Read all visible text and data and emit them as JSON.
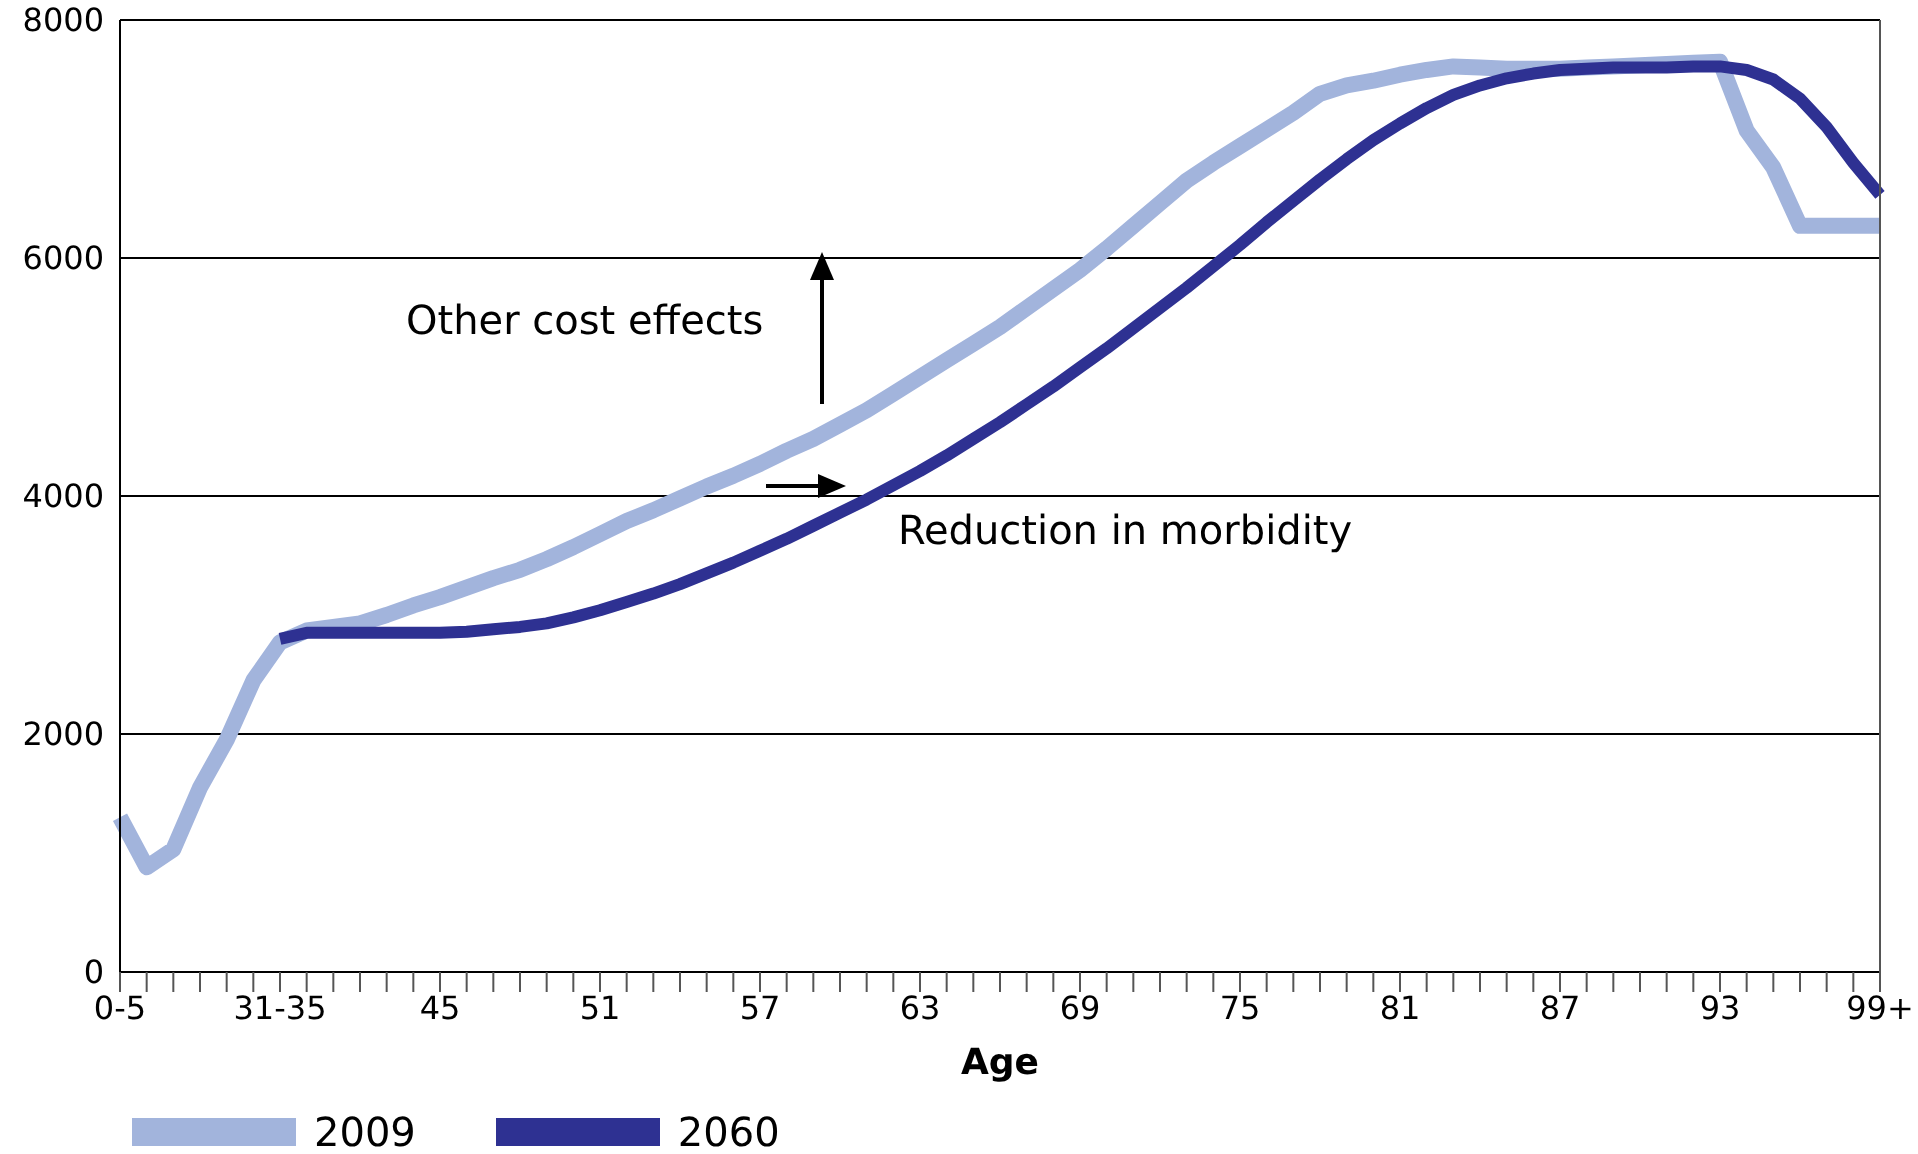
{
  "chart_data": {
    "type": "line",
    "xlabel": "Age",
    "categories": [
      "0-5",
      null,
      null,
      null,
      null,
      null,
      "31-35",
      null,
      null,
      null,
      null,
      null,
      "45",
      null,
      null,
      null,
      null,
      null,
      "51",
      null,
      null,
      null,
      null,
      null,
      "57",
      null,
      null,
      null,
      null,
      null,
      "63",
      null,
      null,
      null,
      null,
      null,
      "69",
      null,
      null,
      null,
      null,
      null,
      "75",
      null,
      null,
      null,
      null,
      null,
      "81",
      null,
      null,
      null,
      null,
      null,
      "87",
      null,
      null,
      null,
      null,
      null,
      "93",
      null,
      null,
      null,
      null,
      null,
      "99+"
    ],
    "series": [
      {
        "name": "2009",
        "color": "#a2b4dc",
        "values": [
          1300,
          880,
          1030,
          1550,
          1950,
          2450,
          2770,
          2870,
          2900,
          2930,
          3000,
          3080,
          3150,
          3230,
          3310,
          3380,
          3470,
          3570,
          3680,
          3790,
          3880,
          3980,
          4080,
          4170,
          4270,
          4380,
          4480,
          4600,
          4720,
          4860,
          5000,
          5140,
          5280,
          5420,
          5580,
          5740,
          5900,
          6080,
          6270,
          6460,
          6650,
          6800,
          6940,
          7080,
          7220,
          7380,
          7450,
          7490,
          7540,
          7580,
          7610,
          7600,
          7590,
          7590,
          7590,
          7600,
          7610,
          7620,
          7630,
          7640,
          7650,
          7070,
          6760,
          6270,
          6270,
          6270,
          6270
        ]
      },
      {
        "name": "2060",
        "color": "#2e3192",
        "values": [
          null,
          null,
          null,
          null,
          null,
          null,
          2800,
          2850,
          2850,
          2850,
          2850,
          2850,
          2850,
          2860,
          2880,
          2900,
          2930,
          2980,
          3040,
          3110,
          3180,
          3260,
          3350,
          3440,
          3540,
          3640,
          3750,
          3860,
          3970,
          4090,
          4210,
          4340,
          4480,
          4620,
          4770,
          4920,
          5080,
          5240,
          5410,
          5580,
          5750,
          5930,
          6110,
          6300,
          6480,
          6660,
          6830,
          6990,
          7130,
          7260,
          7370,
          7450,
          7510,
          7550,
          7580,
          7590,
          7600,
          7600,
          7600,
          7610,
          7610,
          7580,
          7500,
          7340,
          7100,
          6800,
          6530
        ]
      }
    ],
    "ylim": [
      0,
      8000
    ],
    "yticks": [
      0,
      2000,
      4000,
      6000,
      8000
    ],
    "grid": "y",
    "legend": "bottom left",
    "marker": "none",
    "line_style": "solid",
    "annotations": [
      "Other cost effects",
      "Reduction in morbidity"
    ]
  }
}
